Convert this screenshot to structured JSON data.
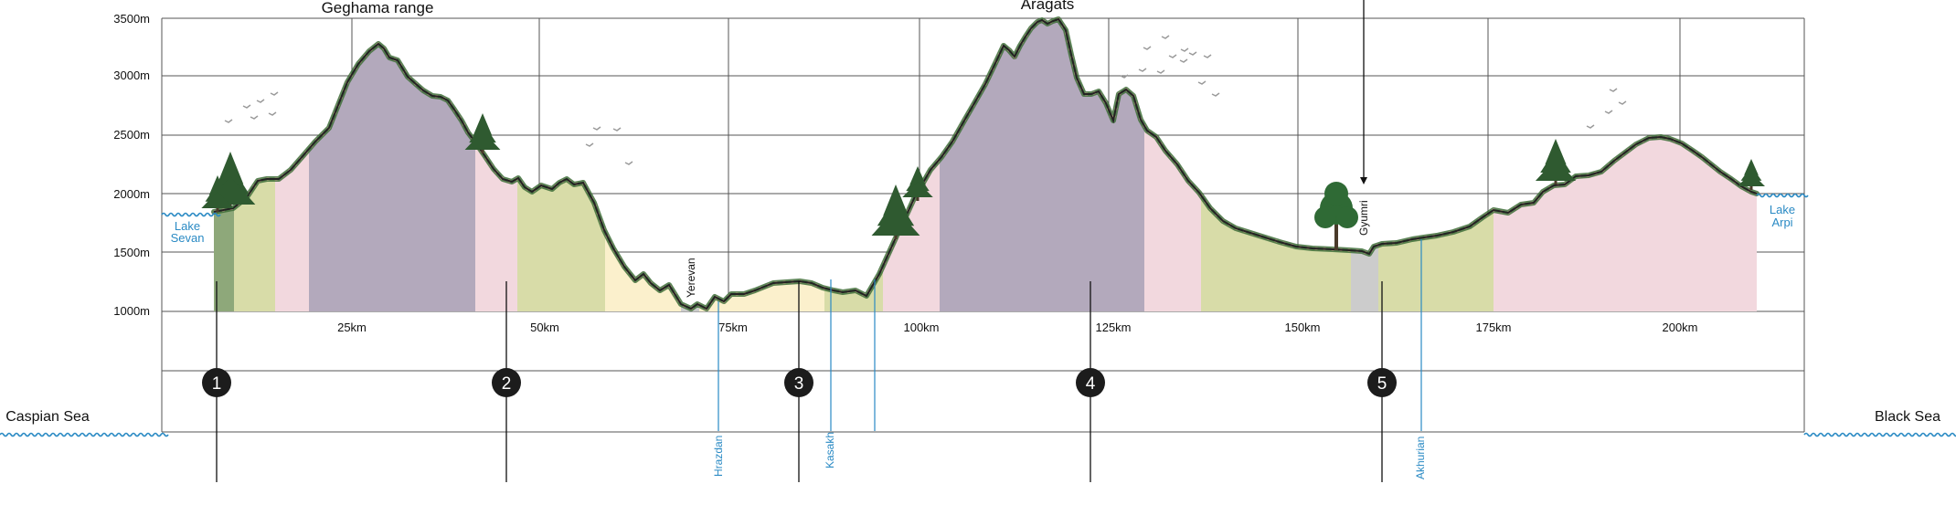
{
  "y_ticks": [
    "3500m",
    "3000m",
    "2500m",
    "2000m",
    "1500m",
    "1000m"
  ],
  "x_ticks": [
    "25km",
    "50km",
    "75km",
    "100km",
    "125km",
    "150km",
    "175km",
    "200km"
  ],
  "peaks": {
    "geghama": "Geghama range",
    "aragats": "Aragats"
  },
  "lakes": {
    "sevan": [
      "Lake",
      "Sevan"
    ],
    "arpi": [
      "Lake",
      "Arpi"
    ]
  },
  "seas": {
    "caspian": "Caspian Sea",
    "black": "Black Sea"
  },
  "cities": {
    "yerevan": "Yerevan",
    "gyumri": "Gyumri"
  },
  "rivers": {
    "hrazdan": "Hrazdan",
    "kasakh": "Kasakh",
    "akhurian": "Akhurian"
  },
  "markers": [
    "1",
    "2",
    "3",
    "4",
    "5"
  ],
  "colors": {
    "subalpine_meadow": "#b3a9bc",
    "mountain_steppe": "#f2d8de",
    "meadow_steppe": "#d8dca8",
    "semi_desert": "#fbf0cc",
    "forest": "#8ea87a",
    "urban": "#cccccc",
    "water": "#2a8ac4",
    "ridge": "#3f6e3a",
    "terrain_line": "#222222",
    "marker_fill": "#1c1c1c"
  }
}
